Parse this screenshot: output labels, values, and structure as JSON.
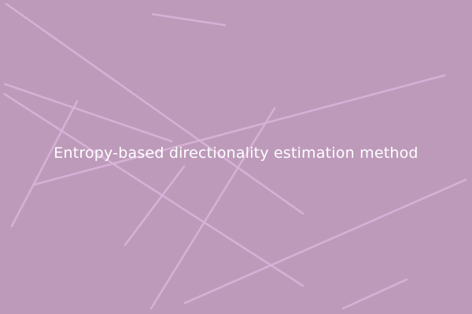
{
  "colors": {
    "background": "#bd9aba",
    "line": "#d9b3da",
    "text": "#ffffff"
  },
  "title": "Entropy-based directionality estimation method"
}
